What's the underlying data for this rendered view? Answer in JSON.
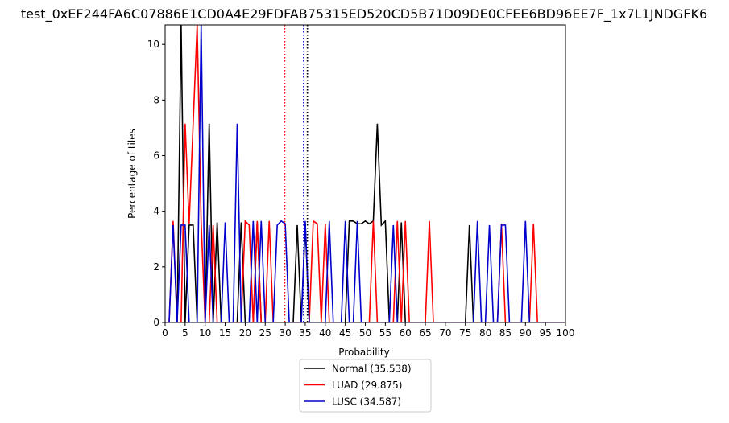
{
  "chart_data": {
    "type": "line",
    "title": "test_0xEF244FA6C07886E1CD0A4E29FDFAB75315ED520CD5B71D09DE0CFEE6BD96EE7F_1x7L1JNDGFK6",
    "xlabel": "Probability",
    "ylabel": "Percentage of tiles",
    "xlim": [
      0,
      100
    ],
    "ylim": [
      0,
      10.7
    ],
    "x_ticks": [
      0,
      5,
      10,
      15,
      20,
      25,
      30,
      35,
      40,
      45,
      50,
      55,
      60,
      65,
      70,
      75,
      80,
      85,
      90,
      95,
      100
    ],
    "y_ticks": [
      0,
      2,
      4,
      6,
      8,
      10
    ],
    "grid": false,
    "legend_position": "bottom-center, below axes",
    "legend": [
      "Normal (35.538)",
      "LUAD (29.875)",
      "LUSC (34.587)"
    ],
    "series": [
      {
        "name": "Normal (35.538)",
        "color": "#000000",
        "x": [
          0,
          1,
          2,
          3,
          4,
          5,
          6,
          7,
          8,
          9,
          10,
          11,
          12,
          13,
          14,
          15,
          16,
          17,
          18,
          19,
          20,
          21,
          22,
          23,
          24,
          25,
          26,
          27,
          28,
          29,
          30,
          31,
          32,
          33,
          34,
          35,
          36,
          37,
          38,
          39,
          40,
          41,
          42,
          43,
          44,
          45,
          46,
          47,
          48,
          49,
          50,
          51,
          52,
          53,
          54,
          55,
          56,
          57,
          58,
          59,
          60,
          61,
          62,
          63,
          64,
          65,
          66,
          67,
          68,
          69,
          70,
          71,
          72,
          73,
          74,
          75,
          76,
          77,
          78,
          79,
          80,
          81,
          82,
          83,
          84,
          85,
          86,
          87,
          88,
          89,
          90,
          91,
          92,
          93,
          94,
          95,
          96,
          97,
          98,
          99,
          100
        ],
        "y": [
          0,
          0,
          0,
          0,
          10.7,
          0,
          3.5,
          3.5,
          0,
          0,
          0,
          7.15,
          0,
          3.6,
          0,
          0,
          0,
          0,
          0,
          3.6,
          0,
          0,
          0,
          3.6,
          0,
          0,
          0,
          0,
          0,
          0,
          0,
          0,
          0,
          3.5,
          0,
          3.5,
          0,
          0,
          0,
          0,
          0,
          0,
          0,
          0,
          0,
          0,
          3.65,
          3.65,
          3.55,
          3.55,
          3.65,
          3.55,
          3.65,
          7.15,
          3.5,
          3.65,
          0,
          0,
          0,
          3.6,
          0,
          0,
          0,
          0,
          0,
          0,
          0,
          0,
          0,
          0,
          0,
          0,
          0,
          0,
          0,
          0,
          3.5,
          0,
          0,
          0,
          0,
          0,
          0,
          0,
          0,
          0,
          0,
          0,
          0,
          0,
          0,
          0,
          0,
          0,
          0,
          0,
          0,
          0,
          0,
          0,
          0
        ]
      },
      {
        "name": "LUAD (29.875)",
        "color": "#ff0000",
        "x": [
          0,
          1,
          2,
          3,
          4,
          5,
          6,
          7,
          8,
          9,
          10,
          11,
          12,
          13,
          14,
          15,
          16,
          17,
          18,
          19,
          20,
          21,
          22,
          23,
          24,
          25,
          26,
          27,
          28,
          29,
          30,
          31,
          32,
          33,
          34,
          35,
          36,
          37,
          38,
          39,
          40,
          41,
          42,
          43,
          44,
          45,
          46,
          47,
          48,
          49,
          50,
          51,
          52,
          53,
          54,
          55,
          56,
          57,
          58,
          59,
          60,
          61,
          62,
          63,
          64,
          65,
          66,
          67,
          68,
          69,
          70,
          71,
          72,
          73,
          74,
          75,
          76,
          77,
          78,
          79,
          80,
          81,
          82,
          83,
          84,
          85,
          86,
          87,
          88,
          89,
          90,
          91,
          92,
          93,
          94,
          95,
          96,
          97,
          98,
          99,
          100
        ],
        "y": [
          0,
          0,
          3.65,
          0,
          0,
          7.15,
          3.55,
          7.15,
          10.7,
          3.6,
          0,
          0,
          3.5,
          0,
          0,
          0,
          0,
          0,
          0,
          0,
          3.65,
          3.5,
          0,
          3.65,
          0,
          0,
          3.65,
          0,
          0,
          0,
          0,
          0,
          0,
          0,
          0,
          0,
          0,
          3.65,
          3.55,
          0,
          3.55,
          0,
          0,
          0,
          0,
          0,
          0,
          0,
          0,
          0,
          0,
          0,
          3.65,
          0,
          0,
          0,
          0,
          0,
          3.65,
          0,
          3.65,
          0,
          0,
          0,
          0,
          0,
          3.65,
          0,
          0,
          0,
          0,
          0,
          0,
          0,
          0,
          0,
          0,
          0,
          0,
          0,
          0,
          0,
          0,
          0,
          3.55,
          0,
          0,
          0,
          0,
          0,
          0,
          0,
          3.55,
          0,
          0,
          0,
          0,
          0,
          0,
          0,
          0
        ]
      },
      {
        "name": "LUSC (34.587)",
        "color": "#0000cc",
        "x": [
          0,
          1,
          2,
          3,
          4,
          5,
          6,
          7,
          8,
          9,
          10,
          11,
          12,
          13,
          14,
          15,
          16,
          17,
          18,
          19,
          20,
          21,
          22,
          23,
          24,
          25,
          26,
          27,
          28,
          29,
          30,
          31,
          32,
          33,
          34,
          35,
          36,
          37,
          38,
          39,
          40,
          41,
          42,
          43,
          44,
          45,
          46,
          47,
          48,
          49,
          50,
          51,
          52,
          53,
          54,
          55,
          56,
          57,
          58,
          59,
          60,
          61,
          62,
          63,
          64,
          65,
          66,
          67,
          68,
          69,
          70,
          71,
          72,
          73,
          74,
          75,
          76,
          77,
          78,
          79,
          80,
          81,
          82,
          83,
          84,
          85,
          86,
          87,
          88,
          89,
          90,
          91,
          92,
          93,
          94,
          95,
          96,
          97,
          98,
          99,
          100
        ],
        "y": [
          0,
          0,
          3.5,
          0,
          3.5,
          3.5,
          0,
          0,
          0,
          10.7,
          0,
          3.5,
          0,
          0,
          0,
          3.6,
          0,
          0,
          7.15,
          0,
          0,
          0,
          3.65,
          0,
          3.65,
          0,
          0,
          0,
          3.5,
          3.65,
          3.55,
          0,
          0,
          0,
          0,
          3.65,
          0,
          0,
          0,
          0,
          0,
          3.65,
          0,
          0,
          0,
          3.65,
          0,
          0,
          3.65,
          0,
          0,
          0,
          0,
          0,
          0,
          0,
          0,
          3.5,
          0,
          0,
          0,
          0,
          0,
          0,
          0,
          0,
          0,
          0,
          0,
          0,
          0,
          0,
          0,
          0,
          0,
          0,
          0,
          0,
          3.65,
          0,
          0,
          3.5,
          0,
          0,
          3.5,
          3.5,
          0,
          0,
          0,
          0,
          3.65,
          0,
          0,
          0,
          0,
          0,
          0,
          0,
          0,
          0,
          0
        ]
      }
    ],
    "vlines": [
      {
        "x": 35.538,
        "color": "#000000"
      },
      {
        "x": 29.875,
        "color": "#ff0000"
      },
      {
        "x": 34.587,
        "color": "#0000cc"
      }
    ]
  }
}
